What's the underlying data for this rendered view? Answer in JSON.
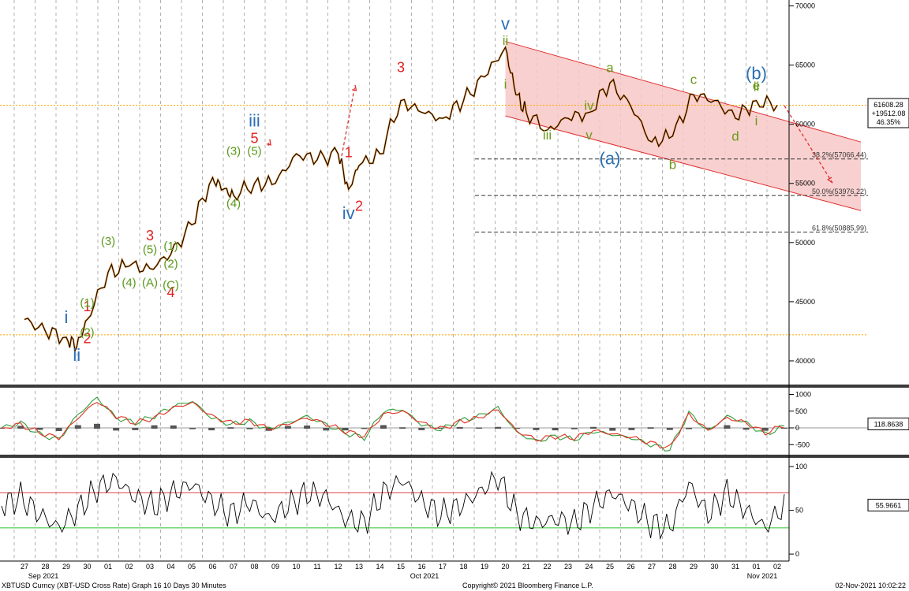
{
  "chart_data": [
    {
      "type": "line",
      "panel": "price",
      "series": [
        {
          "name": "",
          "x": [
            "2021-09-27",
            "2021-09-28",
            "2021-09-29",
            "2021-09-29T12",
            "2021-09-30",
            "2021-10-01",
            "2021-10-02",
            "2021-10-03",
            "2021-10-04",
            "2021-10-05",
            "2021-10-06",
            "2021-10-06T12",
            "2021-10-07",
            "2021-10-08",
            "2021-10-09",
            "2021-10-10",
            "2021-10-11",
            "2021-10-12",
            "2021-10-12T12",
            "2021-10-13",
            "2021-10-14",
            "2021-10-15",
            "2021-10-16",
            "2021-10-17",
            "2021-10-18",
            "2021-10-19",
            "2021-10-20",
            "2021-10-20T12",
            "2021-10-21",
            "2021-10-22",
            "2021-10-23",
            "2021-10-24",
            "2021-10-25",
            "2021-10-26",
            "2021-10-27",
            "2021-10-28",
            "2021-10-29",
            "2021-10-30",
            "2021-10-31",
            "2021-11-01",
            "2021-11-02"
          ],
          "y": [
            43500,
            42500,
            42000,
            41200,
            43500,
            47500,
            48000,
            47800,
            49000,
            51500,
            55500,
            54500,
            54000,
            55000,
            55000,
            57500,
            57000,
            57500,
            54500,
            56500,
            57500,
            62000,
            61000,
            60500,
            62000,
            64000,
            66500,
            62500,
            61000,
            59500,
            60500,
            61000,
            63500,
            61500,
            58500,
            59000,
            62500,
            62000,
            60500,
            62000,
            61600
          ],
          "color": "#000000"
        }
      ],
      "ylim": [
        38000,
        70500
      ],
      "y_ticks": [
        "40000",
        "45000",
        "50000",
        "55000",
        "60000",
        "65000",
        "70000"
      ],
      "fibonacci_levels": [
        {
          "label": "38.2%(57066.44)",
          "value": 57066.44
        },
        {
          "label": "50.0%(53976.22)",
          "value": 53976.22
        },
        {
          "label": "61.8%(50885.99)",
          "value": 50885.99
        }
      ],
      "horizontal_lines": [
        {
          "value": 61608.28,
          "color": "#ffa500"
        },
        {
          "value": 42200,
          "color": "#ffa500"
        }
      ],
      "last_value_box": [
        "61608.28",
        "+19512.08",
        "46.35%"
      ],
      "channel": {
        "upper": [
          [
            "2021-10-20",
            67000
          ],
          [
            "2021-11-06",
            58500
          ]
        ],
        "lower": [
          [
            "2021-10-20",
            60700
          ],
          [
            "2021-11-06",
            52700
          ]
        ],
        "fill": "#f8c8c8"
      },
      "annotations": [
        {
          "text": "i",
          "x": "2021-09-29",
          "y": 43200,
          "color": "#2a6fb5",
          "size": 22
        },
        {
          "text": "ii",
          "x": "2021-09-29T12",
          "y": 40000,
          "color": "#2a6fb5",
          "size": 22
        },
        {
          "text": "iii",
          "x": "2021-10-08",
          "y": 59800,
          "color": "#2a6fb5",
          "size": 22
        },
        {
          "text": "iv",
          "x": "2021-10-12T12",
          "y": 52000,
          "color": "#2a6fb5",
          "size": 22
        },
        {
          "text": "v",
          "x": "2021-10-20",
          "y": 68000,
          "color": "#2a6fb5",
          "size": 22
        },
        {
          "text": "(a)",
          "x": "2021-10-25",
          "y": 56600,
          "color": "#2a6fb5",
          "size": 22
        },
        {
          "text": "(b)",
          "x": "2021-11-01",
          "y": 63800,
          "color": "#2a6fb5",
          "size": 22
        },
        {
          "text": "1",
          "x": "2021-09-30",
          "y": 44200,
          "color": "#e02020",
          "size": 18
        },
        {
          "text": "2",
          "x": "2021-09-30",
          "y": 41500,
          "color": "#e02020",
          "size": 18
        },
        {
          "text": "3",
          "x": "2021-10-03",
          "y": 50200,
          "color": "#e02020",
          "size": 18
        },
        {
          "text": "4",
          "x": "2021-10-04",
          "y": 45400,
          "color": "#e02020",
          "size": 18
        },
        {
          "text": "5",
          "x": "2021-10-08",
          "y": 58400,
          "color": "#e02020",
          "size": 18
        },
        {
          "text": "1",
          "x": "2021-10-12T12",
          "y": 57200,
          "color": "#e02020",
          "size": 18
        },
        {
          "text": "2",
          "x": "2021-10-13",
          "y": 52700,
          "color": "#e02020",
          "size": 18
        },
        {
          "text": "3",
          "x": "2021-10-15",
          "y": 64400,
          "color": "#e02020",
          "size": 18
        },
        {
          "text": "(1)",
          "x": "2021-09-30",
          "y": 44600,
          "color": "#5a9a1a",
          "size": 15
        },
        {
          "text": "(2)",
          "x": "2021-09-30",
          "y": 42100,
          "color": "#5a9a1a",
          "size": 15
        },
        {
          "text": "(3)",
          "x": "2021-10-01",
          "y": 49800,
          "color": "#5a9a1a",
          "size": 15
        },
        {
          "text": "(4)",
          "x": "2021-10-02",
          "y": 46300,
          "color": "#5a9a1a",
          "size": 15
        },
        {
          "text": "(5)",
          "x": "2021-10-03",
          "y": 49100,
          "color": "#5a9a1a",
          "size": 15
        },
        {
          "text": "(A)",
          "x": "2021-10-03",
          "y": 46300,
          "color": "#5a9a1a",
          "size": 15
        },
        {
          "text": "(1)",
          "x": "2021-10-04",
          "y": 49400,
          "color": "#5a9a1a",
          "size": 15
        },
        {
          "text": "(2)",
          "x": "2021-10-04",
          "y": 47900,
          "color": "#5a9a1a",
          "size": 15
        },
        {
          "text": "(C)",
          "x": "2021-10-04",
          "y": 46100,
          "color": "#5a9a1a",
          "size": 15
        },
        {
          "text": "(3)",
          "x": "2021-10-07",
          "y": 57400,
          "color": "#5a9a1a",
          "size": 15
        },
        {
          "text": "(4)",
          "x": "2021-10-07",
          "y": 53000,
          "color": "#5a9a1a",
          "size": 15
        },
        {
          "text": "(5)",
          "x": "2021-10-08",
          "y": 57400,
          "color": "#5a9a1a",
          "size": 15
        },
        {
          "text": "ii",
          "x": "2021-10-20",
          "y": 66700,
          "color": "#6a9a1a",
          "size": 17
        },
        {
          "text": "i",
          "x": "2021-10-20",
          "y": 63000,
          "color": "#6a9a1a",
          "size": 17
        },
        {
          "text": "iii",
          "x": "2021-10-22",
          "y": 58700,
          "color": "#6a9a1a",
          "size": 17
        },
        {
          "text": "iv",
          "x": "2021-10-24",
          "y": 61200,
          "color": "#6a9a1a",
          "size": 17
        },
        {
          "text": "v",
          "x": "2021-10-24",
          "y": 58700,
          "color": "#6a9a1a",
          "size": 17
        },
        {
          "text": "a",
          "x": "2021-10-25",
          "y": 64400,
          "color": "#6a9a1a",
          "size": 17
        },
        {
          "text": "b",
          "x": "2021-10-28",
          "y": 56200,
          "color": "#6a9a1a",
          "size": 17
        },
        {
          "text": "c",
          "x": "2021-10-29",
          "y": 63400,
          "color": "#6a9a1a",
          "size": 17
        },
        {
          "text": "d",
          "x": "2021-10-31",
          "y": 58600,
          "color": "#6a9a1a",
          "size": 17
        },
        {
          "text": "e",
          "x": "2021-11-01",
          "y": 62900,
          "color": "#6a9a1a",
          "size": 17
        },
        {
          "text": "ii",
          "x": "2021-11-01",
          "y": 62800,
          "color": "#6a9a1a",
          "size": 17
        },
        {
          "text": "i",
          "x": "2021-11-01",
          "y": 59900,
          "color": "#6a9a1a",
          "size": 17
        }
      ],
      "grid": true
    },
    {
      "type": "line",
      "panel": "oscillator",
      "ylim": [
        -800,
        1200
      ],
      "y_ticks": [
        "1000",
        "500",
        "0",
        "-500"
      ],
      "last_value_box": [
        "118.8638"
      ],
      "series": [
        {
          "name": "",
          "color": "#2e9d3a",
          "values": [
            0,
            150,
            -200,
            -350,
            400,
            900,
            300,
            150,
            350,
            650,
            800,
            300,
            100,
            200,
            -50,
            150,
            350,
            100,
            -150,
            -300,
            500,
            550,
            100,
            -50,
            200,
            350,
            600,
            -150,
            -400,
            -250,
            -350,
            -100,
            -200,
            -300,
            -500,
            -650,
            450,
            -100,
            350,
            150,
            -200,
            50
          ]
        },
        {
          "name": "",
          "color": "#e03020",
          "values": [
            0,
            100,
            -150,
            -300,
            300,
            800,
            350,
            150,
            300,
            600,
            750,
            350,
            150,
            200,
            -30,
            120,
            300,
            120,
            -100,
            -250,
            400,
            500,
            150,
            -30,
            180,
            300,
            550,
            -100,
            -350,
            -250,
            -300,
            -80,
            -180,
            -280,
            -450,
            -600,
            400,
            -80,
            300,
            150,
            -150,
            80
          ]
        }
      ],
      "grid": true
    },
    {
      "type": "line",
      "panel": "rsi",
      "ylim": [
        -8,
        110
      ],
      "y_ticks": [
        "100",
        "50",
        "0"
      ],
      "levels": [
        {
          "value": 70,
          "color": "#e04040"
        },
        {
          "value": 30,
          "color": "#2cc42c"
        }
      ],
      "last_value_box": [
        "55.9661"
      ],
      "series": [
        {
          "name": "",
          "color": "#000000",
          "values": [
            55,
            65,
            45,
            30,
            50,
            75,
            85,
            65,
            55,
            70,
            80,
            60,
            45,
            60,
            40,
            55,
            70,
            65,
            40,
            35,
            70,
            85,
            60,
            45,
            55,
            70,
            88,
            45,
            35,
            40,
            35,
            55,
            70,
            55,
            35,
            30,
            80,
            45,
            70,
            50,
            30,
            56
          ]
        }
      ],
      "grid": true
    }
  ],
  "x_axis": {
    "days": [
      "27",
      "28",
      "29",
      "30",
      "01",
      "02",
      "03",
      "04",
      "05",
      "06",
      "07",
      "08",
      "09",
      "10",
      "11",
      "12",
      "13",
      "14",
      "15",
      "16",
      "17",
      "18",
      "19",
      "20",
      "21",
      "22",
      "23",
      "24",
      "25",
      "26",
      "27",
      "28",
      "29",
      "30",
      "31",
      "01",
      "02"
    ],
    "months": [
      "Sep 2021",
      "Oct 2021",
      "Nov 2021"
    ]
  },
  "footer": {
    "left": "XBTUSD Curncy (XBT-USD Cross Rate) Graph 16 10 Days 30 Minutes",
    "center": "Copyright© 2021 Bloomberg Finance L.P.",
    "right": "02-Nov-2021 10:02:22"
  }
}
